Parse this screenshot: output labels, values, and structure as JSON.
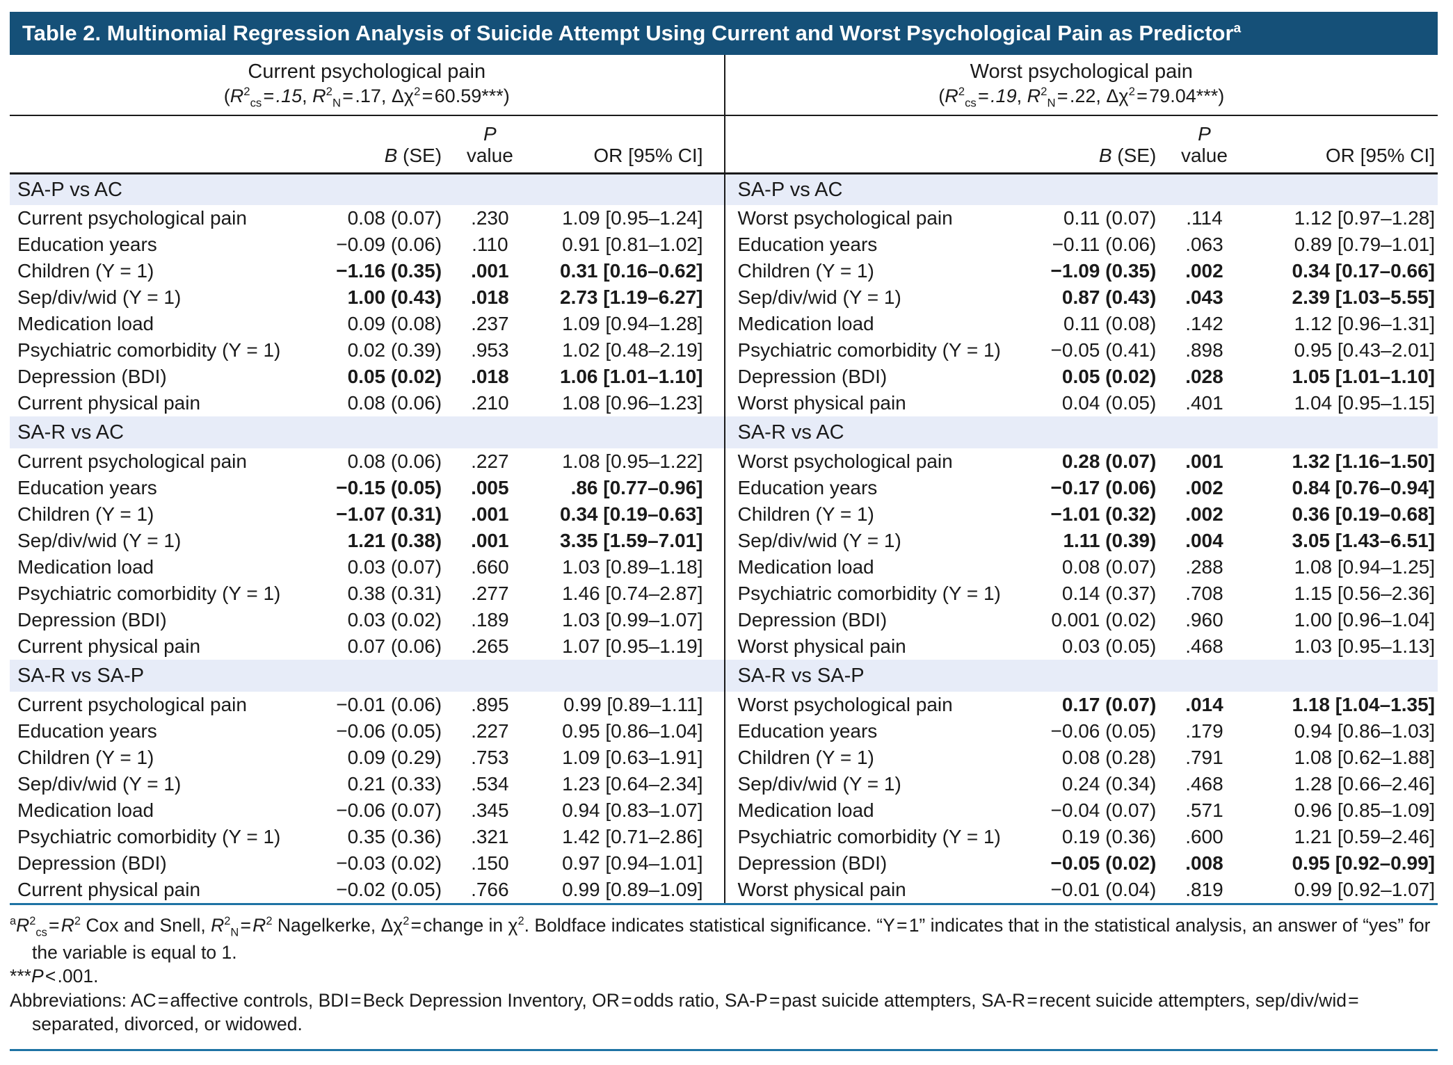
{
  "title": {
    "text": "Table 2. Multinomial Regression Analysis of Suicide Attempt Using Current and Worst Psychological Pain as Predictor",
    "superscript": "a"
  },
  "colors": {
    "title_bar": "#155078",
    "section_row": "#E7ECF8",
    "rule_blue": "#1E73A4",
    "text": "#1a1a1a"
  },
  "columns": {
    "b_se_html": "<i>B</i> (SE)",
    "p_html": "<i>P</i><br>value",
    "or_html": "OR [95% CI]"
  },
  "panels": [
    {
      "id": "current",
      "header": "Current psychological pain",
      "stats_html": "(<i>R</i><sup>2</sup><sub>cs</sub>&#8202;=&#8202;<i>.15</i>, <i>R</i><sup>2</sup><sub>N</sub>&#8202;=&#8202;.17, &#916;&#967;<sup>2</sup>&#8202;=&#8202;60.59***)",
      "sections": [
        {
          "label": "SA-P vs AC",
          "rows": [
            {
              "label": "Current psychological pain",
              "b_se": "0.08 (0.07)",
              "p": ".230",
              "or": "1.09 [0.95–1.24]",
              "bold": false
            },
            {
              "label": "Education years",
              "b_se": "−0.09 (0.06)",
              "p": ".110",
              "or": "0.91 [0.81–1.02]",
              "bold": false
            },
            {
              "label": "Children (Y = 1)",
              "b_se": "−1.16 (0.35)",
              "p": ".001",
              "or": "0.31 [0.16–0.62]",
              "bold": true
            },
            {
              "label": "Sep/div/wid (Y = 1)",
              "b_se": "1.00 (0.43)",
              "p": ".018",
              "or": "2.73 [1.19–6.27]",
              "bold": true
            },
            {
              "label": "Medication load",
              "b_se": "0.09 (0.08)",
              "p": ".237",
              "or": "1.09 [0.94–1.28]",
              "bold": false
            },
            {
              "label": "Psychiatric comorbidity (Y = 1)",
              "b_se": "0.02 (0.39)",
              "p": ".953",
              "or": "1.02 [0.48–2.19]",
              "bold": false
            },
            {
              "label": "Depression (BDI)",
              "b_se": "0.05 (0.02)",
              "p": ".018",
              "or": "1.06 [1.01–1.10]",
              "bold": true
            },
            {
              "label": "Current physical pain",
              "b_se": "0.08 (0.06)",
              "p": ".210",
              "or": "1.08 [0.96–1.23]",
              "bold": false
            }
          ]
        },
        {
          "label": "SA-R vs AC",
          "rows": [
            {
              "label": "Current psychological pain",
              "b_se": "0.08 (0.06)",
              "p": ".227",
              "or": "1.08 [0.95–1.22]",
              "bold": false
            },
            {
              "label": "Education years",
              "b_se": "−0.15 (0.05)",
              "p": ".005",
              "or": ".86 [0.77–0.96]",
              "bold": true
            },
            {
              "label": "Children (Y = 1)",
              "b_se": "−1.07 (0.31)",
              "p": ".001",
              "or": "0.34 [0.19–0.63]",
              "bold": true
            },
            {
              "label": "Sep/div/wid (Y = 1)",
              "b_se": "1.21 (0.38)",
              "p": ".001",
              "or": "3.35 [1.59–7.01]",
              "bold": true
            },
            {
              "label": "Medication load",
              "b_se": "0.03 (0.07)",
              "p": ".660",
              "or": "1.03 [0.89–1.18]",
              "bold": false
            },
            {
              "label": "Psychiatric comorbidity (Y = 1)",
              "b_se": "0.38 (0.31)",
              "p": ".277",
              "or": "1.46 [0.74–2.87]",
              "bold": false
            },
            {
              "label": "Depression (BDI)",
              "b_se": "0.03 (0.02)",
              "p": ".189",
              "or": "1.03 [0.99–1.07]",
              "bold": false
            },
            {
              "label": "Current physical pain",
              "b_se": "0.07 (0.06)",
              "p": ".265",
              "or": "1.07 [0.95–1.19]",
              "bold": false
            }
          ]
        },
        {
          "label": "SA-R vs SA-P",
          "rows": [
            {
              "label": "Current psychological pain",
              "b_se": "−0.01 (0.06)",
              "p": ".895",
              "or": "0.99 [0.89–1.11]",
              "bold": false
            },
            {
              "label": "Education years",
              "b_se": "−0.06 (0.05)",
              "p": ".227",
              "or": "0.95 [0.86–1.04]",
              "bold": false
            },
            {
              "label": "Children (Y = 1)",
              "b_se": "0.09 (0.29)",
              "p": ".753",
              "or": "1.09 [0.63–1.91]",
              "bold": false
            },
            {
              "label": "Sep/div/wid (Y = 1)",
              "b_se": "0.21 (0.33)",
              "p": ".534",
              "or": "1.23 [0.64–2.34]",
              "bold": false
            },
            {
              "label": "Medication load",
              "b_se": "−0.06 (0.07)",
              "p": ".345",
              "or": "0.94 [0.83–1.07]",
              "bold": false
            },
            {
              "label": "Psychiatric comorbidity (Y = 1)",
              "b_se": "0.35 (0.36)",
              "p": ".321",
              "or": "1.42 [0.71–2.86]",
              "bold": false
            },
            {
              "label": "Depression (BDI)",
              "b_se": "−0.03 (0.02)",
              "p": ".150",
              "or": "0.97 [0.94–1.01]",
              "bold": false
            },
            {
              "label": "Current physical pain",
              "b_se": "−0.02 (0.05)",
              "p": ".766",
              "or": "0.99 [0.89–1.09]",
              "bold": false
            }
          ]
        }
      ]
    },
    {
      "id": "worst",
      "header": "Worst psychological pain",
      "stats_html": "(<i>R</i><sup>2</sup><sub>cs</sub>&#8202;=&#8202;<i>.19</i>, <i>R</i><sup>2</sup><sub>N</sub>&#8202;=&#8202;.22, &#916;&#967;<sup>2</sup>&#8202;=&#8202;79.04***)",
      "sections": [
        {
          "label": "SA-P vs AC",
          "rows": [
            {
              "label": "Worst psychological pain",
              "b_se": "0.11 (0.07)",
              "p": ".114",
              "or": "1.12 [0.97–1.28]",
              "bold": false
            },
            {
              "label": "Education years",
              "b_se": "−0.11 (0.06)",
              "p": ".063",
              "or": "0.89 [0.79–1.01]",
              "bold": false
            },
            {
              "label": "Children (Y = 1)",
              "b_se": "−1.09 (0.35)",
              "p": ".002",
              "or": "0.34 [0.17–0.66]",
              "bold": true
            },
            {
              "label": "Sep/div/wid (Y = 1)",
              "b_se": "0.87 (0.43)",
              "p": ".043",
              "or": "2.39 [1.03–5.55]",
              "bold": true
            },
            {
              "label": "Medication load",
              "b_se": "0.11 (0.08)",
              "p": ".142",
              "or": "1.12 [0.96–1.31]",
              "bold": false
            },
            {
              "label": "Psychiatric comorbidity (Y = 1)",
              "b_se": "−0.05 (0.41)",
              "p": ".898",
              "or": "0.95 [0.43–2.01]",
              "bold": false
            },
            {
              "label": "Depression (BDI)",
              "b_se": "0.05 (0.02)",
              "p": ".028",
              "or": "1.05 [1.01–1.10]",
              "bold": true
            },
            {
              "label": "Worst physical pain",
              "b_se": "0.04 (0.05)",
              "p": ".401",
              "or": "1.04 [0.95–1.15]",
              "bold": false
            }
          ]
        },
        {
          "label": "SA-R vs AC",
          "rows": [
            {
              "label": "Worst psychological pain",
              "b_se": "0.28 (0.07)",
              "p": ".001",
              "or": "1.32 [1.16–1.50]",
              "bold": true
            },
            {
              "label": "Education years",
              "b_se": "−0.17 (0.06)",
              "p": ".002",
              "or": "0.84 [0.76–0.94]",
              "bold": true
            },
            {
              "label": "Children (Y = 1)",
              "b_se": "−1.01 (0.32)",
              "p": ".002",
              "or": "0.36 [0.19–0.68]",
              "bold": true
            },
            {
              "label": "Sep/div/wid (Y = 1)",
              "b_se": "1.11 (0.39)",
              "p": ".004",
              "or": "3.05 [1.43–6.51]",
              "bold": true
            },
            {
              "label": "Medication load",
              "b_se": "0.08 (0.07)",
              "p": ".288",
              "or": "1.08 [0.94–1.25]",
              "bold": false
            },
            {
              "label": "Psychiatric comorbidity (Y = 1)",
              "b_se": "0.14 (0.37)",
              "p": ".708",
              "or": "1.15 [0.56–2.36]",
              "bold": false
            },
            {
              "label": "Depression (BDI)",
              "b_se": "0.001 (0.02)",
              "p": ".960",
              "or": "1.00 [0.96–1.04]",
              "bold": false
            },
            {
              "label": "Worst physical pain",
              "b_se": "0.03 (0.05)",
              "p": ".468",
              "or": "1.03 [0.95–1.13]",
              "bold": false
            }
          ]
        },
        {
          "label": "SA-R vs SA-P",
          "rows": [
            {
              "label": "Worst psychological pain",
              "b_se": "0.17 (0.07)",
              "p": ".014",
              "or": "1.18 [1.04–1.35]",
              "bold": true
            },
            {
              "label": "Education years",
              "b_se": "−0.06 (0.05)",
              "p": ".179",
              "or": "0.94 [0.86–1.03]",
              "bold": false
            },
            {
              "label": "Children (Y = 1)",
              "b_se": "0.08 (0.28)",
              "p": ".791",
              "or": "1.08 [0.62–1.88]",
              "bold": false
            },
            {
              "label": "Sep/div/wid (Y = 1)",
              "b_se": "0.24 (0.34)",
              "p": ".468",
              "or": "1.28 [0.66–2.46]",
              "bold": false
            },
            {
              "label": "Medication load",
              "b_se": "−0.04 (0.07)",
              "p": ".571",
              "or": "0.96 [0.85–1.09]",
              "bold": false
            },
            {
              "label": "Psychiatric comorbidity (Y = 1)",
              "b_se": "0.19 (0.36)",
              "p": ".600",
              "or": "1.21 [0.59–2.46]",
              "bold": false
            },
            {
              "label": "Depression (BDI)",
              "b_se": "−0.05 (0.02)",
              "p": ".008",
              "or": "0.95 [0.92–0.99]",
              "bold": true
            },
            {
              "label": "Worst physical pain",
              "b_se": "−0.01 (0.04)",
              "p": ".819",
              "or": "0.99 [0.92–1.07]",
              "bold": false
            }
          ]
        }
      ]
    }
  ],
  "footnotes": [
    "<sup>a</sup><i>R</i><sup>2</sup><sub>cs</sub>&#8202;=&#8202;<i>R</i><sup>2</sup> Cox and Snell, <i>R</i><sup>2</sup><sub>N</sub>&#8202;=&#8202;<i>R</i><sup>2</sup> Nagelkerke, &#916;&#967;<sup>2</sup>&#8202;=&#8202;change in &#967;<sup>2</sup>. Boldface indicates statistical significance. “Y&#8202;=&#8202;1” indicates that in the statistical analysis, an answer of “yes” for the variable is equal to 1.",
    "***<i>P</i>&#8202;&lt;&#8202;.001.",
    "Abbreviations: AC&#8202;=&#8202;affective controls, BDI&#8202;=&#8202;Beck Depression Inventory, OR&#8202;=&#8202;odds ratio, SA-P&#8202;=&#8202;past suicide attempters, SA-R&#8202;=&#8202;recent suicide attempters, sep/div/wid&#8202;=&#8202;separated, divorced, or widowed."
  ]
}
